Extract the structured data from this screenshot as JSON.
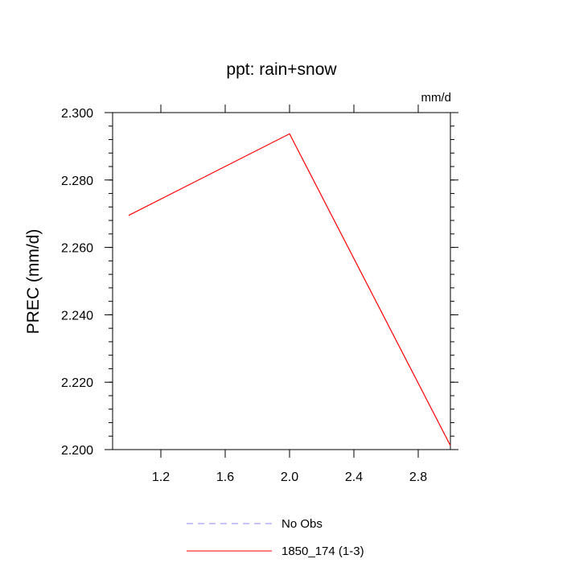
{
  "chart_data": {
    "type": "line",
    "title": "ppt: rain+snow",
    "units_label": "mm/d",
    "ylabel": "PREC  (mm/d)",
    "xlabel": "",
    "xlim": [
      0.9,
      3.0
    ],
    "ylim": [
      2.2,
      2.3
    ],
    "x_ticks": [
      1.2,
      1.6,
      2.0,
      2.4,
      2.8
    ],
    "x_tick_labels": [
      "1.2",
      "1.6",
      "2.0",
      "2.4",
      "2.8"
    ],
    "y_ticks": [
      2.2,
      2.22,
      2.24,
      2.26,
      2.28,
      2.3
    ],
    "y_tick_labels": [
      "2.200",
      "2.220",
      "2.240",
      "2.260",
      "2.280",
      "2.300"
    ],
    "grid": false,
    "legend_position": "bottom-center",
    "series": [
      {
        "name": "No Obs",
        "color": "#8a8af0",
        "dash": "dashed",
        "x": [],
        "y": []
      },
      {
        "name": "1850_174 (1-3)",
        "color": "#ff0000",
        "dash": "solid",
        "x": [
          1.0,
          2.0,
          3.0
        ],
        "y": [
          2.2695,
          2.2937,
          2.2012
        ]
      }
    ]
  }
}
